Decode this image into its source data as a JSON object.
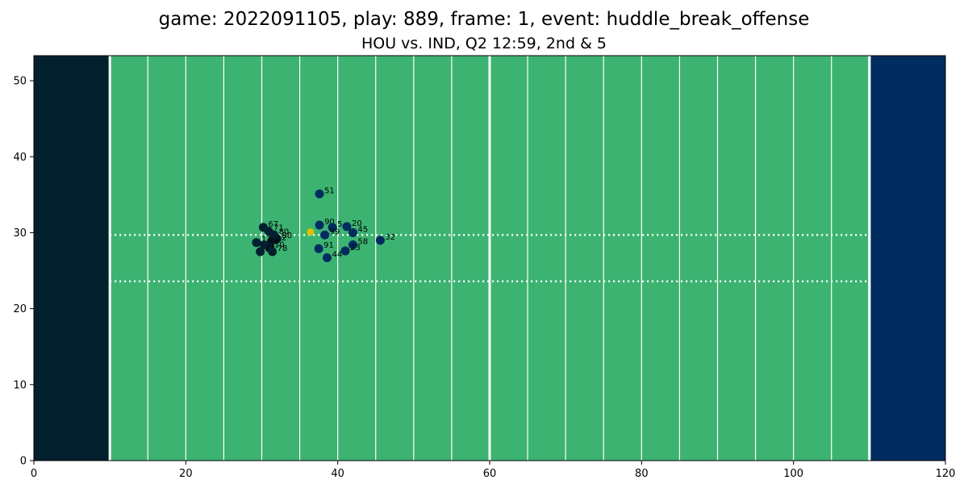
{
  "chart_data": {
    "type": "scatter",
    "title": "game: 2022091105, play: 889, frame: 1, event: huddle_break_offense",
    "subtitle": "HOU vs. IND, Q2 12:59, 2nd & 5",
    "xlabel": "",
    "ylabel": "",
    "xlim": [
      0,
      120
    ],
    "ylim": [
      0,
      53.3
    ],
    "x_ticks": [
      0,
      20,
      40,
      60,
      80,
      100,
      120
    ],
    "y_ticks": [
      0,
      10,
      20,
      30,
      40,
      50
    ],
    "grid": false,
    "colors": {
      "field": "#3cb371",
      "endzone_left": "#03202f",
      "endzone_right": "#002c5f",
      "home_team": "#03202f",
      "away_team": "#002c5f",
      "football": "#dcc000",
      "lines": "#ffffff"
    },
    "field": {
      "left_endzone": [
        0,
        10
      ],
      "right_endzone": [
        110,
        120
      ],
      "yard_lines": [
        15,
        20,
        25,
        30,
        35,
        40,
        45,
        50,
        55,
        60,
        65,
        70,
        75,
        80,
        85,
        90,
        95,
        100,
        105,
        110
      ],
      "goal_lines": [
        10,
        110
      ],
      "midfield": 60,
      "hash_marks_y": [
        23.6,
        29.7
      ]
    },
    "series": [
      {
        "team": "HOU",
        "color": "#03202f",
        "points": [
          {
            "x": 30.2,
            "y": 30.7,
            "label": "67"
          },
          {
            "x": 30.9,
            "y": 30.2,
            "label": "71"
          },
          {
            "x": 31.6,
            "y": 29.7,
            "label": "80"
          },
          {
            "x": 32.0,
            "y": 29.2,
            "label": "88"
          },
          {
            "x": 31.3,
            "y": 28.9,
            "label": "12"
          },
          {
            "x": 29.3,
            "y": 28.7,
            "label": "13"
          },
          {
            "x": 30.3,
            "y": 28.4,
            "label": "88"
          },
          {
            "x": 31.0,
            "y": 28.0,
            "label": "10"
          },
          {
            "x": 29.8,
            "y": 27.5,
            "label": "74"
          },
          {
            "x": 31.4,
            "y": 27.5,
            "label": "78"
          }
        ]
      },
      {
        "team": "IND",
        "color": "#002c5f",
        "points": [
          {
            "x": 37.6,
            "y": 35.1,
            "label": "51"
          },
          {
            "x": 37.6,
            "y": 31.0,
            "label": "90"
          },
          {
            "x": 39.3,
            "y": 30.7,
            "label": "5"
          },
          {
            "x": 41.2,
            "y": 30.8,
            "label": "20"
          },
          {
            "x": 42.0,
            "y": 30.0,
            "label": "45"
          },
          {
            "x": 38.3,
            "y": 29.7,
            "label": "99"
          },
          {
            "x": 45.6,
            "y": 29.0,
            "label": "32"
          },
          {
            "x": 42.0,
            "y": 28.4,
            "label": "58"
          },
          {
            "x": 37.5,
            "y": 27.9,
            "label": "91"
          },
          {
            "x": 41.0,
            "y": 27.6,
            "label": "23"
          },
          {
            "x": 38.6,
            "y": 26.7,
            "label": "44"
          }
        ]
      }
    ],
    "football": {
      "x": 36.4,
      "y": 30.1
    }
  }
}
